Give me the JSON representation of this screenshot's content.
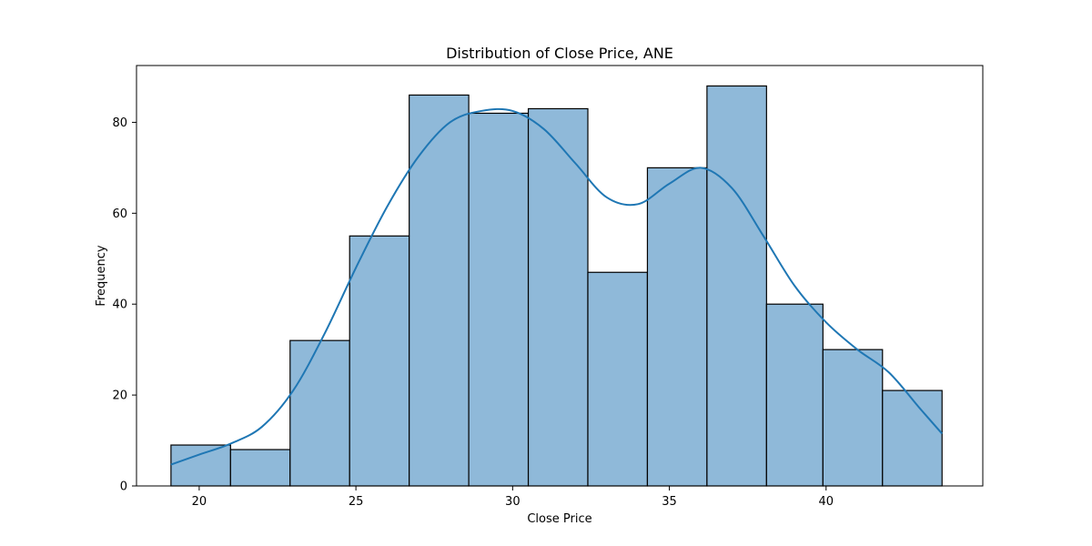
{
  "chart_data": {
    "type": "bar",
    "subtype": "histogram",
    "title": "Distribution of Close Price, ANE",
    "xlabel": "Close Price",
    "ylabel": "Frequency",
    "bin_edges": [
      19.1,
      21.0,
      22.9,
      24.8,
      26.7,
      28.6,
      30.5,
      32.4,
      34.3,
      36.2,
      38.1,
      39.9,
      41.8,
      43.7
    ],
    "values": [
      9,
      8,
      32,
      55,
      86,
      82,
      83,
      47,
      70,
      88,
      40,
      30,
      21
    ],
    "xlim": [
      18.0,
      45.0
    ],
    "ylim": [
      0,
      92.5
    ],
    "xticks": [
      20,
      25,
      30,
      35,
      40
    ],
    "yticks": [
      0,
      20,
      40,
      60,
      80
    ],
    "grid": false,
    "kde": {
      "x": [
        19.1,
        20.0,
        21.0,
        22.0,
        23.0,
        24.0,
        25.0,
        26.0,
        27.0,
        28.0,
        29.0,
        30.0,
        31.0,
        32.0,
        33.0,
        34.0,
        35.0,
        36.0,
        37.0,
        38.0,
        39.0,
        40.0,
        41.0,
        42.0,
        43.0,
        43.7
      ],
      "y": [
        4.7,
        6.9,
        9.3,
        13.0,
        21.0,
        33.5,
        48.0,
        61.5,
        72.5,
        80.0,
        82.5,
        82.5,
        78.5,
        71.0,
        63.5,
        62.0,
        66.5,
        70.0,
        65.5,
        55.0,
        44.0,
        36.0,
        30.0,
        25.0,
        17.0,
        11.5
      ]
    },
    "colors": {
      "bar_fill": "#8fb9d9",
      "bar_edge": "#000000",
      "kde_line": "#1f77b4"
    }
  }
}
